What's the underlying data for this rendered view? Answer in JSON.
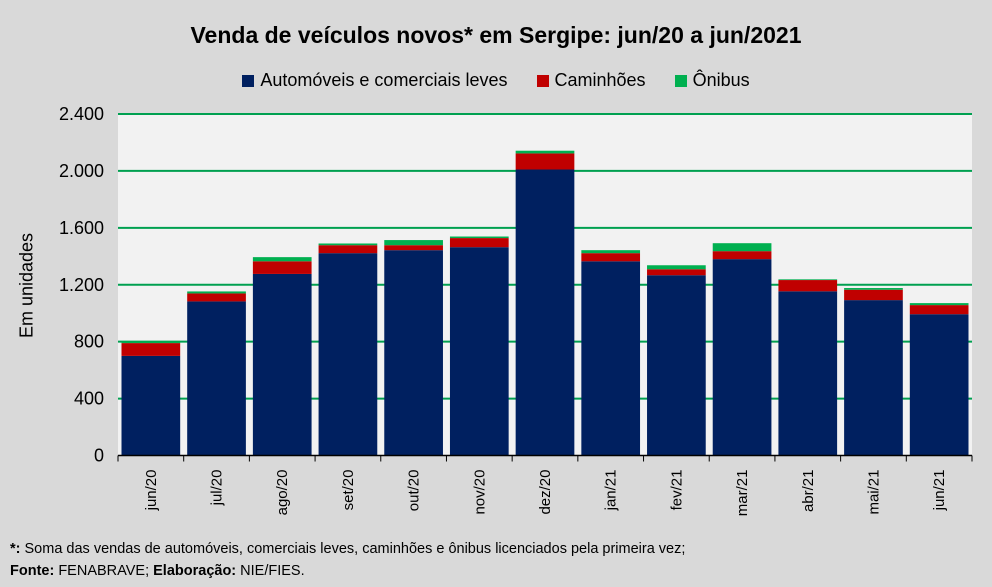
{
  "chart_data": {
    "type": "bar",
    "stacked": true,
    "title": "Venda de veículos novos* em Sergipe: jun/20 a jun/2021",
    "xlabel": "",
    "ylabel": "Em unidades",
    "ylim": [
      0,
      2400
    ],
    "yticks": [
      0,
      400,
      800,
      1200,
      1600,
      2000,
      2400
    ],
    "ytick_labels": [
      "0",
      "400",
      "800",
      "1.200",
      "1.600",
      "2.000",
      "2.400"
    ],
    "grid": true,
    "legend_position": "top",
    "categories": [
      "jun/20",
      "jul/20",
      "ago/20",
      "set/20",
      "out/20",
      "nov/20",
      "dez/20",
      "jan/21",
      "fev/21",
      "mar/21",
      "abr/21",
      "mai/21",
      "jun/21"
    ],
    "series": [
      {
        "name": "Automóveis e comerciais leves",
        "color": "#002060",
        "values": [
          700,
          1083,
          1276,
          1422,
          1443,
          1464,
          2010,
          1365,
          1267,
          1380,
          1154,
          1092,
          993
        ]
      },
      {
        "name": "Caminhões",
        "color": "#c00000",
        "values": [
          90,
          56,
          89,
          56,
          35,
          64,
          113,
          57,
          42,
          56,
          79,
          73,
          64
        ]
      },
      {
        "name": "Ônibus",
        "color": "#00b050",
        "values": [
          12,
          14,
          29,
          12,
          36,
          11,
          19,
          21,
          28,
          56,
          5,
          12,
          14
        ]
      }
    ]
  },
  "footnote": {
    "star_label": "*:",
    "star_text": " Soma das vendas de automóveis, comerciais leves, caminhões e ônibus licenciados pela primeira vez;",
    "source_label": "Fonte:",
    "source_text": " FENABRAVE; ",
    "elab_label": "Elaboração:",
    "elab_text": " NIE/FIES."
  }
}
